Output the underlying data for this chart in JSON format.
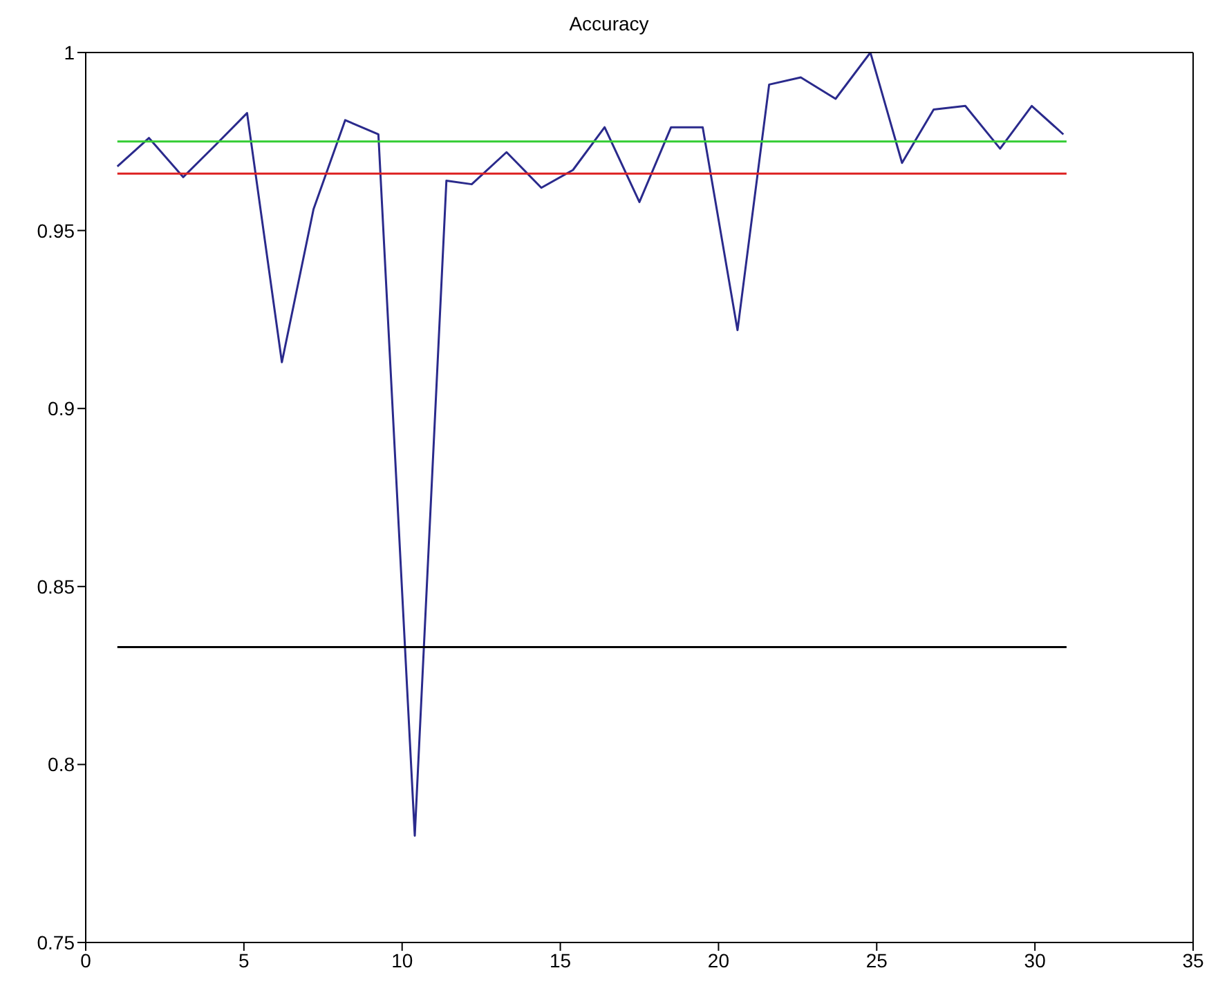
{
  "chart_data": {
    "type": "line",
    "title": "Accuracy",
    "xlim": [
      0,
      35
    ],
    "xticks": [
      0,
      5,
      10,
      15,
      20,
      25,
      30,
      35
    ],
    "ylim": [
      0.75,
      1
    ],
    "yticks": [
      0.75,
      0.8,
      0.85,
      0.9,
      0.95,
      1
    ],
    "marker": "none",
    "series": [
      {
        "color": "#2a2a8c",
        "x": [
          1,
          2,
          3.08,
          4.1,
          5.1,
          6.2,
          7.2,
          8.2,
          9.25,
          10.4,
          11.4,
          12.2,
          13.3,
          14.4,
          15.4,
          16.4,
          17.5,
          18.5,
          19.5,
          20.6,
          21.6,
          22.6,
          23.7,
          24.8,
          25.8,
          26.8,
          27.8,
          28.9,
          29.9,
          30.9
        ],
        "values": [
          0.968,
          0.976,
          0.965,
          0.974,
          0.983,
          0.913,
          0.956,
          0.981,
          0.977,
          0.78,
          0.964,
          0.963,
          0.972,
          0.962,
          0.967,
          0.979,
          0.958,
          0.979,
          0.979,
          0.922,
          0.991,
          0.993,
          0.987,
          1,
          0.969,
          0.984,
          0.985,
          0.973,
          0.985,
          0.977
        ]
      },
      {
        "color": "#33cc33",
        "x": [
          1,
          31
        ],
        "values": [
          0.975,
          0.975
        ]
      },
      {
        "color": "#dd2222",
        "x": [
          1,
          31
        ],
        "values": [
          0.966,
          0.966
        ]
      },
      {
        "color": "#000000",
        "x": [
          1,
          31
        ],
        "values": [
          0.833,
          0.833
        ]
      }
    ]
  }
}
